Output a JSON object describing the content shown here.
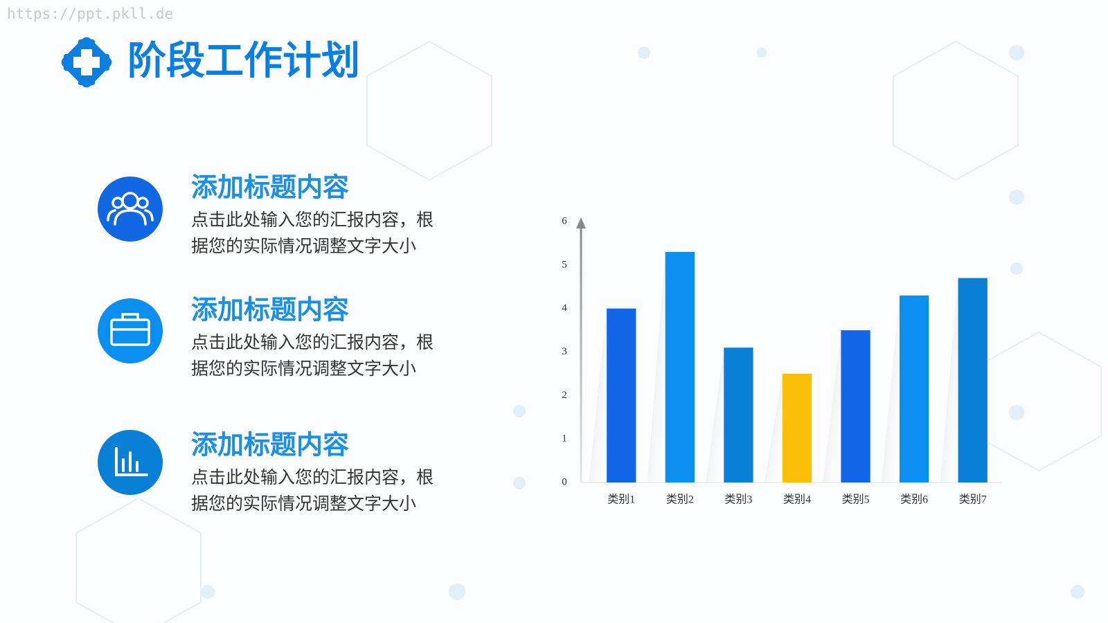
{
  "watermark": "https://ppt.pkll.de",
  "header": {
    "title": "阶段工作计划"
  },
  "items": [
    {
      "heading": "添加标题内容",
      "body": [
        "点击此处输入您的汇报内容，根",
        "据您的实际情况调整文字大小"
      ]
    },
    {
      "heading": "添加标题内容",
      "body": [
        "点击此处输入您的汇报内容，根",
        "据您的实际情况调整文字大小"
      ]
    },
    {
      "heading": "添加标题内容",
      "body": [
        "点击此处输入您的汇报内容，根",
        "据您的实际情况调整文字大小"
      ]
    }
  ],
  "chart_data": {
    "type": "bar",
    "categories": [
      "类别1",
      "类别2",
      "类别3",
      "类别4",
      "类别5",
      "类别6",
      "类别7"
    ],
    "values": [
      4.0,
      5.3,
      3.1,
      2.5,
      3.5,
      4.3,
      4.7
    ],
    "colors": [
      "#1366e8",
      "#0a8ef0",
      "#0a7fd6",
      "#fbbf07",
      "#1366e8",
      "#0a8ef0",
      "#0a7fd6"
    ],
    "ylim": [
      0,
      6
    ],
    "yticks": [
      0,
      1,
      2,
      3,
      4,
      5,
      6
    ],
    "grid": false
  }
}
